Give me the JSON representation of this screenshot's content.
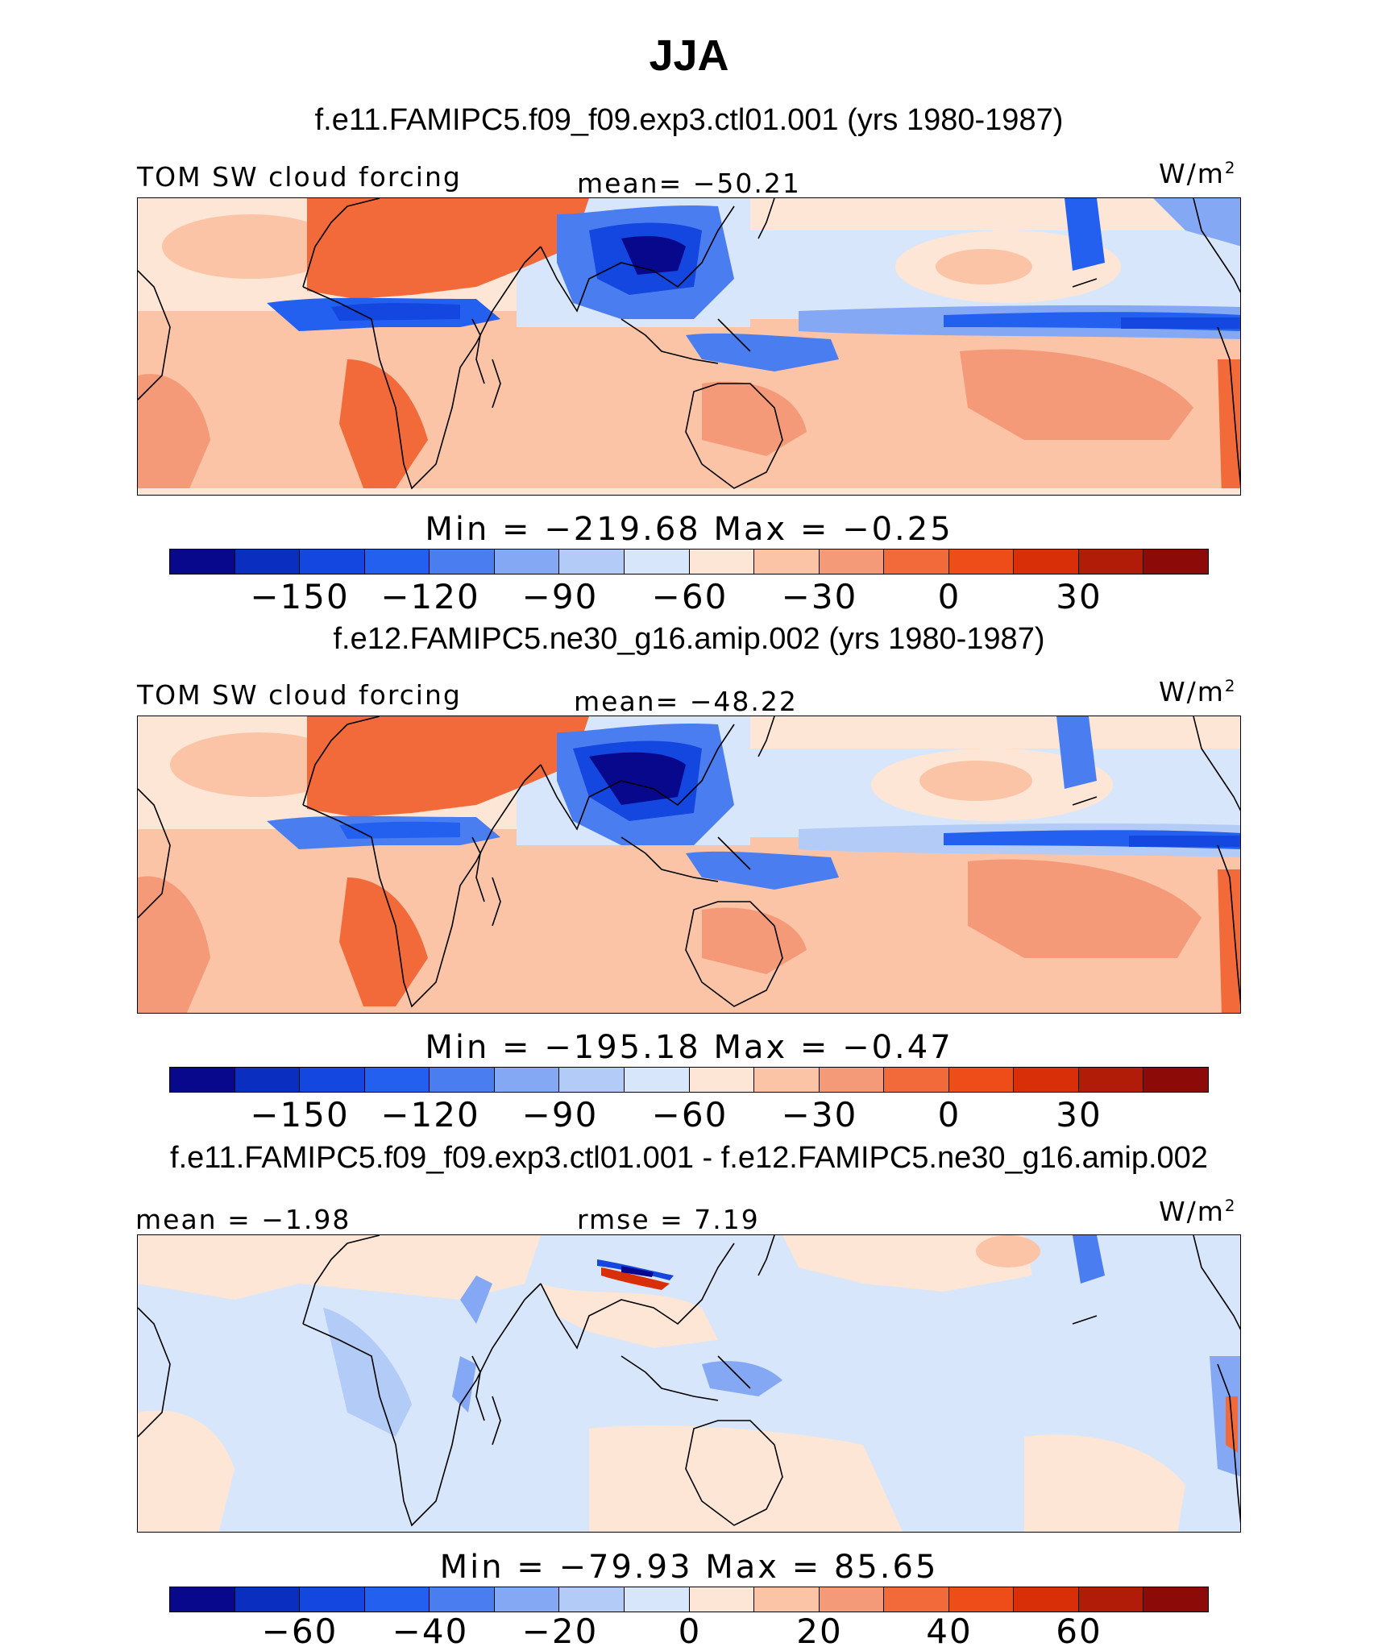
{
  "title": "JJA",
  "units_base": "W/m",
  "units_sup": "2",
  "panels": [
    {
      "id": "p1",
      "case_title": "f.e11.FAMIPC5.f09_f09.exp3.ctl01.001 (yrs 1980-1987)",
      "left_label": "TOM SW cloud forcing",
      "center_label": "mean= −50.21",
      "minmax": "Min = −219.68 Max = −0.25",
      "tick_labels": [
        "−150",
        "−120",
        "−90",
        "−60",
        "−30",
        "0",
        "30"
      ]
    },
    {
      "id": "p2",
      "case_title": "f.e12.FAMIPC5.ne30_g16.amip.002 (yrs 1980-1987)",
      "left_label": "TOM SW cloud forcing",
      "center_label": "mean= −48.22",
      "minmax": "Min = −195.18 Max = −0.47",
      "tick_labels": [
        "−150",
        "−120",
        "−90",
        "−60",
        "−30",
        "0",
        "30"
      ]
    },
    {
      "id": "p3",
      "case_title": "f.e11.FAMIPC5.f09_f09.exp3.ctl01.001 - f.e12.FAMIPC5.ne30_g16.amip.002",
      "left_label": "mean = −1.98",
      "center_label": "rmse = 7.19",
      "minmax": "Min = −79.93 Max = 85.65",
      "tick_labels": [
        "−60",
        "−40",
        "−20",
        "0",
        "20",
        "40",
        "60"
      ]
    }
  ],
  "colorbar_colors": [
    "#08088c",
    "#0a2fc0",
    "#1446e0",
    "#2460f0",
    "#4a7ef0",
    "#85a8f5",
    "#b3cbf7",
    "#d8e6fb",
    "#fde6d6",
    "#fbc4a6",
    "#f59a78",
    "#f26a3a",
    "#ee4c18",
    "#d92f08",
    "#b01c08",
    "#8c0a08"
  ],
  "map_colors": {
    "ocean_light": "#d8e6fb",
    "pale_red": "#fde6d6",
    "light_red": "#fbc4a6",
    "mid_red": "#f59a78",
    "strong_red": "#f26a3a",
    "light_blue": "#b3cbf7",
    "mid_blue": "#4a7ef0",
    "strong_blue": "#1446e0",
    "deep_blue": "#08088c",
    "coast": "#000000"
  }
}
